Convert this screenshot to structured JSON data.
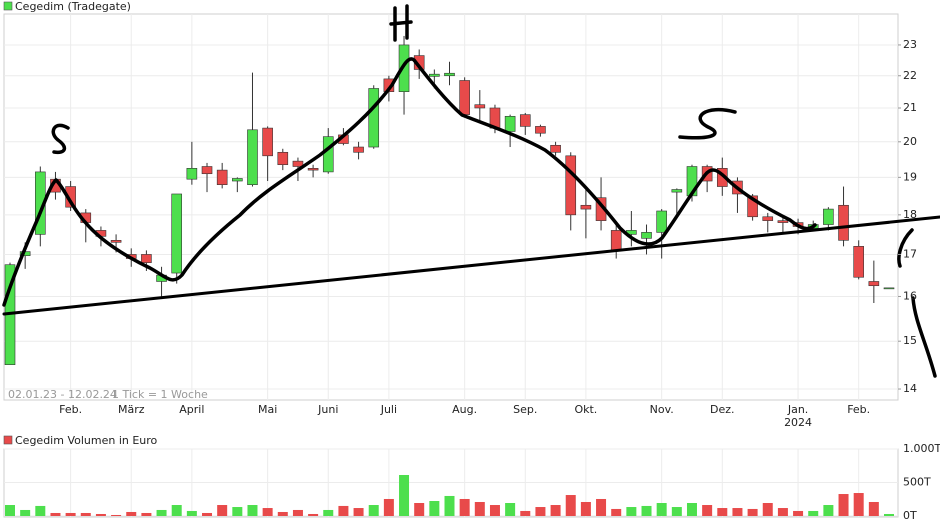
{
  "chart_data": [
    {
      "type": "candlestick",
      "title": "Cegedim (Tradegate)",
      "range_label": "02.01.23 - 12.02.24",
      "tick_label": "1 Tick = 1 Woche",
      "categories": [
        null,
        null,
        null,
        null,
        "Feb.",
        null,
        null,
        null,
        "März",
        null,
        null,
        null,
        "April",
        null,
        null,
        null,
        null,
        "Mai",
        null,
        null,
        null,
        "Juni",
        null,
        null,
        null,
        "Juli",
        null,
        null,
        null,
        null,
        "Aug.",
        null,
        null,
        null,
        "Sep.",
        null,
        null,
        null,
        "Okt.",
        null,
        null,
        null,
        null,
        "Nov.",
        null,
        null,
        null,
        "Dez.",
        null,
        null,
        null,
        null,
        "Jan.\n2024",
        null,
        null,
        null,
        "Feb.",
        null,
        null
      ],
      "open": [
        14.5,
        16.97,
        17.5,
        18.95,
        18.75,
        18.05,
        17.6,
        17.35,
        17.0,
        17.0,
        16.35,
        16.55,
        18.95,
        19.3,
        19.2,
        18.9,
        18.8,
        20.4,
        19.7,
        19.45,
        19.25,
        19.15,
        20.2,
        19.85,
        19.85,
        21.9,
        21.5,
        22.65,
        21.98,
        22.0,
        21.85,
        21.1,
        21.0,
        20.3,
        20.8,
        20.45,
        19.9,
        19.6,
        18.25,
        18.45,
        17.6,
        17.5,
        17.4,
        17.55,
        18.6,
        18.5,
        19.3,
        19.25,
        18.9,
        18.5,
        17.95,
        17.85,
        17.8,
        17.65,
        17.75,
        18.25,
        17.2,
        16.35,
        16.2
      ],
      "high": [
        16.8,
        17.3,
        19.3,
        19.15,
        18.9,
        18.15,
        17.7,
        17.5,
        17.15,
        17.1,
        16.7,
        18.55,
        20.0,
        19.4,
        19.4,
        19.0,
        22.1,
        20.45,
        19.8,
        19.55,
        19.35,
        20.4,
        20.4,
        20.0,
        21.7,
        22.0,
        23.3,
        22.85,
        22.2,
        22.45,
        21.95,
        21.55,
        21.1,
        20.8,
        20.85,
        20.5,
        20.0,
        19.7,
        18.7,
        19.0,
        17.8,
        18.1,
        17.75,
        18.15,
        18.7,
        19.35,
        19.35,
        19.55,
        19.0,
        18.55,
        18.05,
        17.95,
        17.9,
        17.85,
        18.2,
        18.75,
        17.35,
        16.85,
        16.2
      ],
      "low": [
        14.5,
        16.65,
        17.2,
        18.4,
        18.1,
        17.3,
        17.2,
        17.05,
        16.7,
        16.6,
        16.0,
        16.3,
        18.8,
        18.6,
        18.7,
        18.6,
        18.75,
        18.9,
        19.2,
        18.9,
        19.0,
        19.1,
        19.9,
        19.5,
        19.8,
        21.2,
        20.8,
        21.9,
        21.6,
        21.7,
        20.75,
        20.6,
        20.25,
        19.85,
        20.2,
        20.15,
        19.6,
        17.6,
        17.4,
        17.6,
        16.9,
        17.2,
        17.0,
        16.9,
        18.0,
        18.35,
        18.6,
        18.5,
        18.05,
        17.85,
        17.55,
        17.5,
        17.5,
        17.6,
        17.6,
        17.2,
        16.4,
        15.85,
        16.2
      ],
      "close": [
        16.75,
        17.07,
        19.15,
        18.6,
        18.2,
        17.8,
        17.45,
        17.3,
        16.9,
        16.8,
        16.5,
        18.55,
        19.25,
        19.1,
        18.8,
        18.97,
        20.35,
        19.6,
        19.35,
        19.3,
        19.2,
        20.15,
        19.95,
        19.7,
        21.6,
        21.5,
        23.0,
        22.2,
        22.05,
        22.08,
        20.8,
        21.0,
        20.4,
        20.75,
        20.45,
        20.25,
        19.7,
        18.0,
        18.15,
        17.85,
        17.1,
        17.6,
        17.55,
        18.1,
        18.67,
        19.3,
        18.9,
        18.75,
        18.55,
        17.95,
        17.85,
        17.8,
        17.7,
        17.75,
        18.15,
        17.35,
        16.45,
        16.25,
        16.2
      ],
      "up_color": "#4ddf4d",
      "down_color": "#e84a4a",
      "legend_color": "#4ddf4d",
      "log_scale": true,
      "ylim": [
        13.78,
        24.05
      ],
      "yticks": [
        14,
        15,
        16,
        17,
        18,
        19,
        20,
        21,
        22,
        23
      ],
      "grid": true
    },
    {
      "type": "bar",
      "title": "Cegedim Volumen in Euro",
      "values": [
        164,
        90,
        150,
        45,
        45,
        45,
        30,
        15,
        60,
        45,
        90,
        164,
        75,
        45,
        164,
        134,
        164,
        119,
        60,
        90,
        30,
        90,
        150,
        119,
        164,
        254,
        612,
        194,
        224,
        299,
        254,
        209,
        164,
        194,
        75,
        134,
        164,
        313,
        209,
        254,
        105,
        134,
        150,
        194,
        134,
        194,
        164,
        119,
        119,
        105,
        194,
        119,
        75,
        75,
        164,
        328,
        343,
        209,
        30
      ],
      "up_color": "#4ddf4d",
      "down_color": "#e84a4a",
      "legend_color": "#e84a4a",
      "ylim": [
        0,
        1000
      ],
      "yticks": [
        {
          "value": 0,
          "label": "0T"
        },
        {
          "value": 500,
          "label": "500T"
        },
        {
          "value": 1000,
          "label": "1.000T"
        }
      ],
      "grid": true
    }
  ]
}
